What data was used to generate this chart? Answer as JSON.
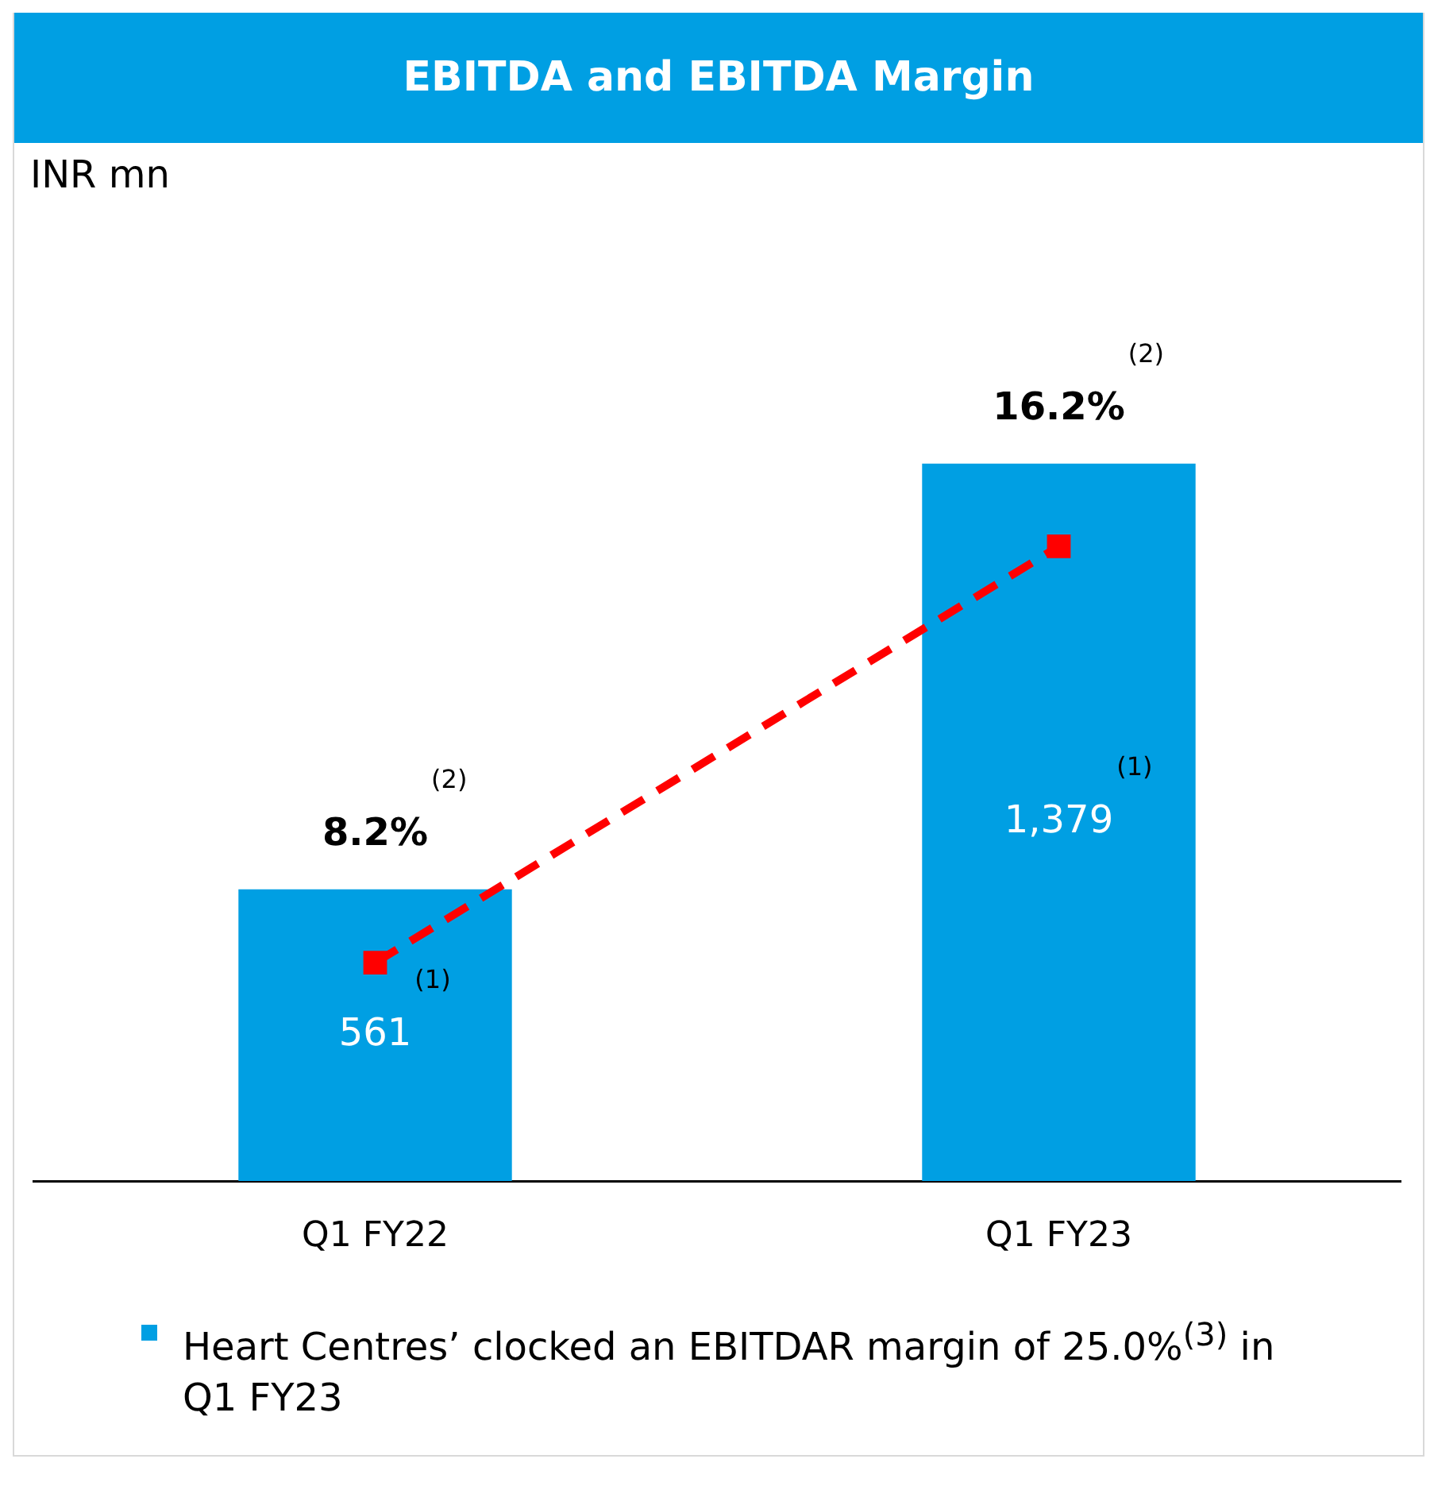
{
  "chart_data": {
    "type": "bar",
    "title": "EBITDA and EBITDA Margin",
    "categories": [
      "Q1 FY22",
      "Q1 FY23"
    ],
    "series": [
      {
        "color": "#009fe3",
        "values": [
          561,
          1379
        ],
        "value_labels": [
          "561$^{(1)}$",
          "1,379$^{(1)}$"
        ]
      },
      {
        "type": "line",
        "axis": "y2",
        "color": "#ff0000",
        "values": [
          8.2,
          16.2
        ],
        "value_labels": [
          "8.2%$^{(2)}$",
          "16.2%$^{(2)}$"
        ]
      }
    ],
    "grid": false,
    "legend": false,
    "marker": "square",
    "line_style": "dashed",
    "tick_labels": "x",
    "annotations": [
      "INR mn",
      "Heart Centres’ clocked an EBITDAR margin of 25.0%$^{(3)}$ in Q1 FY23"
    ]
  }
}
